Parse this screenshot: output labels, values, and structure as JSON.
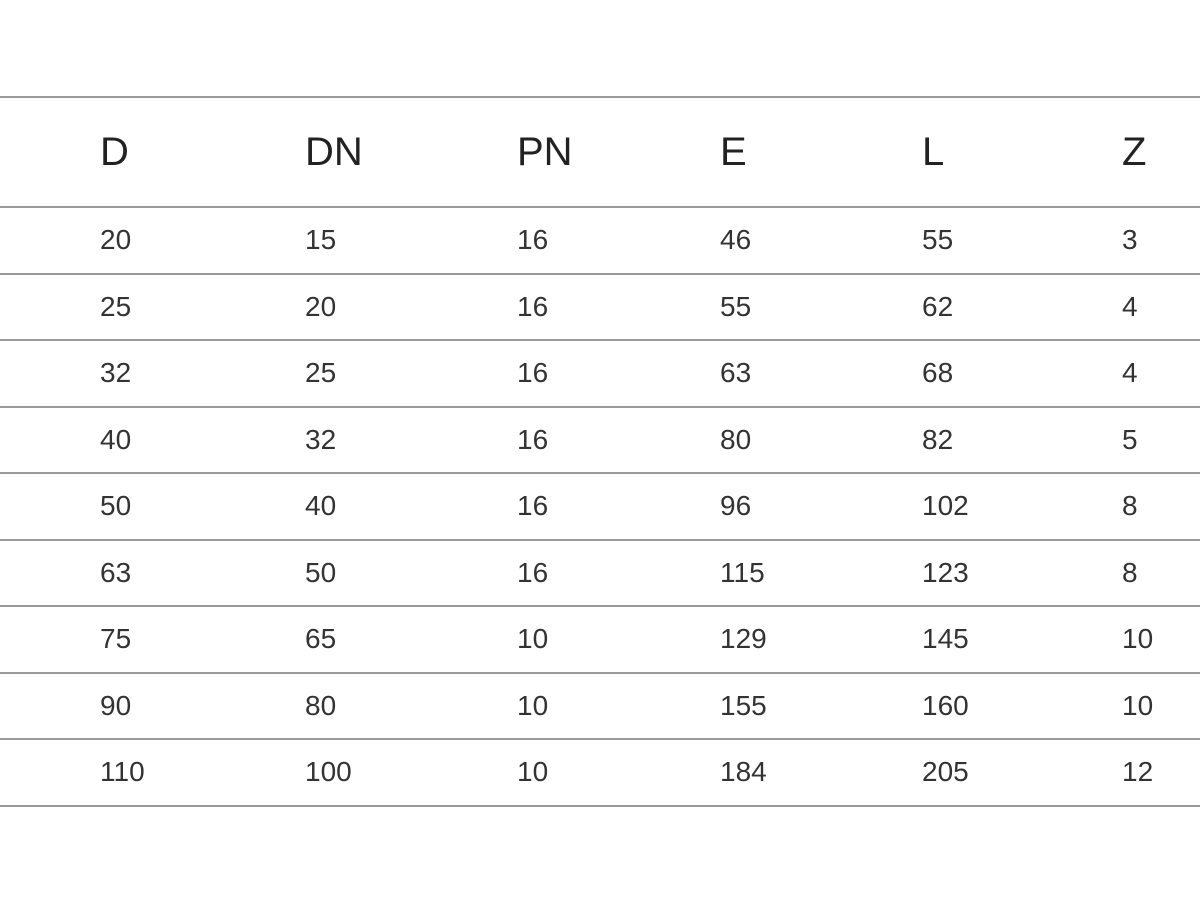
{
  "table": {
    "headers": [
      "D",
      "DN",
      "PN",
      "E",
      "L",
      "Z"
    ],
    "rows": [
      [
        "20",
        "15",
        "16",
        "46",
        "55",
        "3"
      ],
      [
        "25",
        "20",
        "16",
        "55",
        "62",
        "4"
      ],
      [
        "32",
        "25",
        "16",
        "63",
        "68",
        "4"
      ],
      [
        "40",
        "32",
        "16",
        "80",
        "82",
        "5"
      ],
      [
        "50",
        "40",
        "16",
        "96",
        "102",
        "8"
      ],
      [
        "63",
        "50",
        "16",
        "115",
        "123",
        "8"
      ],
      [
        "75",
        "65",
        "10",
        "129",
        "145",
        "10"
      ],
      [
        "90",
        "80",
        "10",
        "155",
        "160",
        "10"
      ],
      [
        "110",
        "100",
        "10",
        "184",
        "205",
        "12"
      ]
    ]
  }
}
